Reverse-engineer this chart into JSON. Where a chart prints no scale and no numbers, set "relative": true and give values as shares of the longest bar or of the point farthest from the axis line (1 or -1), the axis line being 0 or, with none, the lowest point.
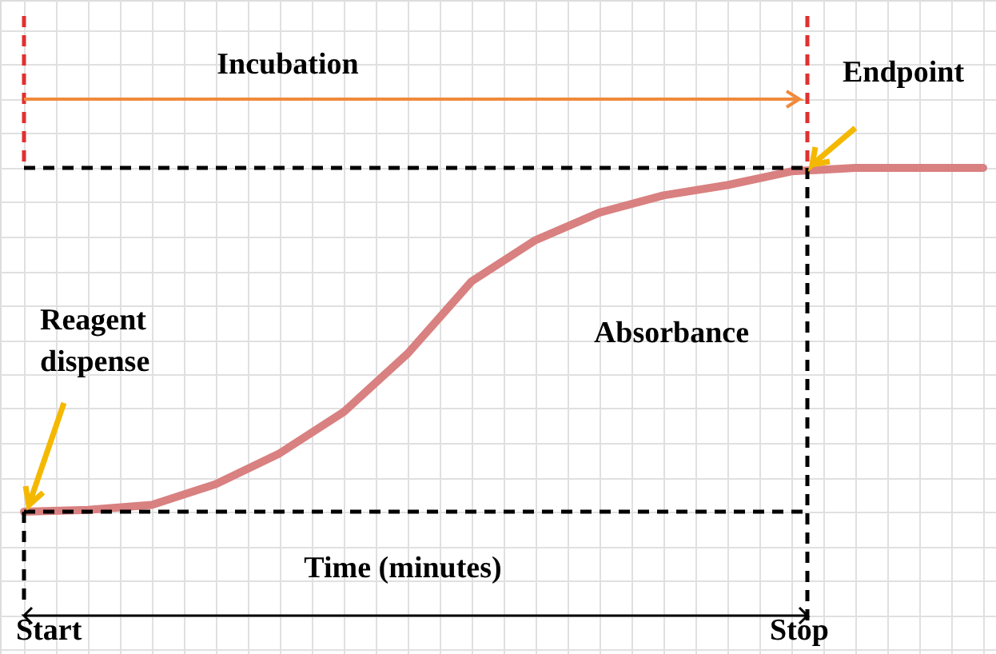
{
  "chart_data": {
    "type": "line",
    "relative": true,
    "categories": [
      null,
      null,
      null,
      null,
      null,
      null,
      null,
      null,
      null,
      null,
      null,
      null,
      null,
      null,
      null,
      null
    ],
    "series": [
      {
        "color": "#d98080",
        "values": [
          0,
          0.005,
          0.02,
          0.08,
          0.17,
          0.29,
          0.46,
          0.67,
          0.79,
          0.87,
          0.92,
          0.95,
          0.99,
          1,
          1,
          1
        ]
      }
    ],
    "ref_lines": [
      {
        "axis": "y",
        "value": 0,
        "color": "#000000",
        "line_style": "dashed"
      },
      {
        "axis": "y",
        "value": 1,
        "color": "#000000",
        "line_style": "dashed"
      }
    ],
    "annotations": [
      "Incubation",
      "Endpoint",
      "Reagent dispense",
      "Absorbance",
      "Time (minutes)",
      "Start",
      "Stop"
    ],
    "grid": true,
    "marker": "none",
    "line_style": "solid"
  }
}
